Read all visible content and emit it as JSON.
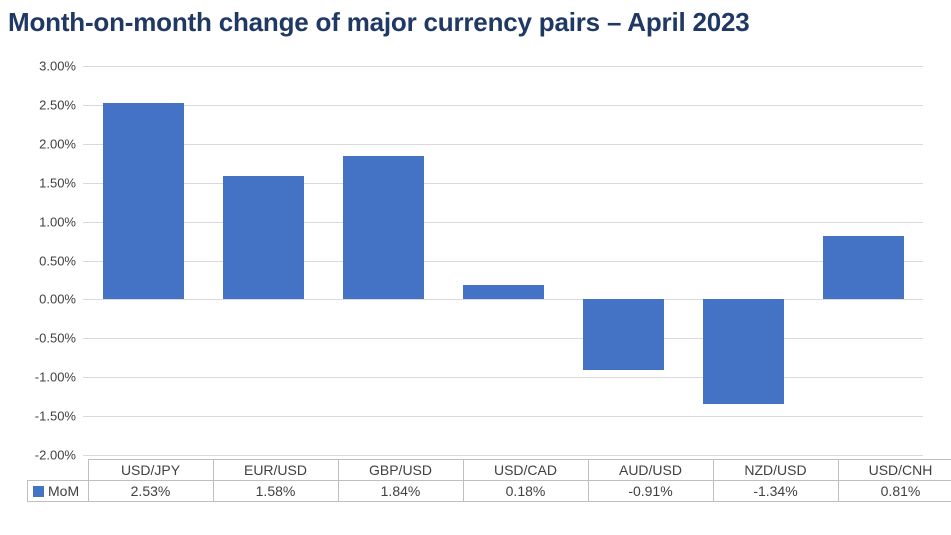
{
  "title": "Month-on-month change of major currency pairs – April 2023",
  "chart_data": {
    "type": "bar",
    "title": "Month-on-month change of major currency pairs – April 2023",
    "categories": [
      "USD/JPY",
      "EUR/USD",
      "GBP/USD",
      "USD/CAD",
      "AUD/USD",
      "NZD/USD",
      "USD/CNH"
    ],
    "series": [
      {
        "name": "MoM",
        "values": [
          2.53,
          1.58,
          1.84,
          0.18,
          -0.91,
          -1.34,
          0.81
        ]
      }
    ],
    "value_labels": [
      "2.53%",
      "1.58%",
      "1.84%",
      "0.18%",
      "-0.91%",
      "-1.34%",
      "0.81%"
    ],
    "xlabel": "",
    "ylabel": "",
    "ylim": [
      -2.0,
      3.0
    ],
    "ytick_step": 0.5,
    "ytick_labels": [
      "3.00%",
      "2.50%",
      "2.00%",
      "1.50%",
      "1.00%",
      "0.50%",
      "0.00%",
      "-0.50%",
      "-1.00%",
      "-1.50%",
      "-2.00%"
    ],
    "grid": true,
    "legend_position": "bottom-left-table",
    "data_table_shown": true
  },
  "colors": {
    "title_text": "#1F3864",
    "bar_fill": "#4472C4",
    "gridline": "#D9D9D9",
    "table_border": "#BFBFBF",
    "axis_text": "#404040",
    "table_text": "#404040",
    "background": "#FFFFFF"
  }
}
